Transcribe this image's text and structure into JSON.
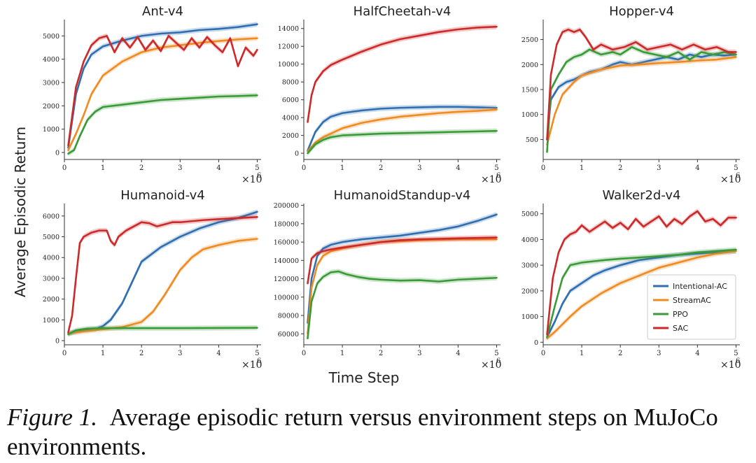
{
  "figure": {
    "ylabel": "Average Episodic Return",
    "xlabel": "Time Step",
    "legend_position": "lower-right of Walker2d-v4 panel",
    "series_styles": [
      {
        "name": "Intentional-AC",
        "color": "#2f6fb0"
      },
      {
        "name": "StreamAC",
        "color": "#f08b22"
      },
      {
        "name": "PPO",
        "color": "#3a9a37"
      },
      {
        "name": "SAC",
        "color": "#cc2a2a"
      }
    ]
  },
  "caption": {
    "label": "Figure 1.",
    "text": "Average episodic return versus environment steps on MuJoCo environments."
  },
  "chart_data": [
    {
      "type": "line",
      "title": "Ant-v4",
      "x_multiplier_label": "×10",
      "x_multiplier_exp": "6",
      "xlim": [
        0,
        5.1
      ],
      "ylim": [
        -300,
        5700
      ],
      "xticks": [
        0,
        1,
        2,
        3,
        4,
        5
      ],
      "yticks": [
        0,
        1000,
        2000,
        3000,
        4000,
        5000
      ],
      "grid": false,
      "series": [
        {
          "name": "Intentional-AC",
          "x": [
            0.1,
            0.3,
            0.5,
            0.7,
            1.0,
            1.5,
            2.0,
            2.5,
            3.0,
            3.5,
            4.0,
            4.5,
            5.0
          ],
          "y": [
            200,
            2500,
            3600,
            4200,
            4550,
            4800,
            5000,
            5100,
            5150,
            5250,
            5300,
            5380,
            5500
          ]
        },
        {
          "name": "StreamAC",
          "x": [
            0.1,
            0.3,
            0.5,
            0.7,
            1.0,
            1.5,
            2.0,
            2.5,
            3.0,
            3.5,
            4.0,
            4.5,
            5.0
          ],
          "y": [
            100,
            800,
            1600,
            2500,
            3300,
            3900,
            4300,
            4500,
            4600,
            4700,
            4780,
            4850,
            4900
          ]
        },
        {
          "name": "PPO",
          "x": [
            0.1,
            0.25,
            0.4,
            0.6,
            0.8,
            1.0,
            1.5,
            2.0,
            2.5,
            3.0,
            3.5,
            4.0,
            4.5,
            5.0
          ],
          "y": [
            -50,
            100,
            700,
            1400,
            1750,
            1950,
            2050,
            2150,
            2250,
            2300,
            2350,
            2400,
            2420,
            2450
          ]
        },
        {
          "name": "SAC",
          "x": [
            0.1,
            0.3,
            0.5,
            0.7,
            0.9,
            1.1,
            1.3,
            1.5,
            1.7,
            1.9,
            2.1,
            2.3,
            2.5,
            2.7,
            2.9,
            3.1,
            3.3,
            3.5,
            3.7,
            3.9,
            4.1,
            4.3,
            4.5,
            4.7,
            4.9,
            5.0
          ],
          "y": [
            300,
            2800,
            3900,
            4600,
            4900,
            5000,
            4300,
            4900,
            4500,
            4950,
            4400,
            4800,
            4350,
            5000,
            4700,
            4400,
            4900,
            4500,
            4950,
            4600,
            4300,
            4900,
            3700,
            4500,
            4150,
            4400
          ]
        }
      ]
    },
    {
      "type": "line",
      "title": "HalfCheetah-v4",
      "xlim": [
        0,
        5.1
      ],
      "ylim": [
        -700,
        15000
      ],
      "xticks": [
        0,
        1,
        2,
        3,
        4,
        5
      ],
      "yticks": [
        0,
        2000,
        4000,
        6000,
        8000,
        10000,
        12000,
        14000
      ],
      "grid": false,
      "series": [
        {
          "name": "Intentional-AC",
          "x": [
            0.1,
            0.3,
            0.5,
            0.7,
            1.0,
            1.5,
            2.0,
            2.5,
            3.0,
            3.5,
            4.0,
            4.5,
            5.0
          ],
          "y": [
            300,
            2400,
            3500,
            4100,
            4500,
            4800,
            5000,
            5100,
            5150,
            5200,
            5200,
            5150,
            5100
          ]
        },
        {
          "name": "StreamAC",
          "x": [
            0.1,
            0.3,
            0.5,
            0.7,
            1.0,
            1.5,
            2.0,
            2.5,
            3.0,
            3.5,
            4.0,
            4.5,
            5.0
          ],
          "y": [
            200,
            1200,
            1800,
            2200,
            2800,
            3400,
            3800,
            4100,
            4300,
            4500,
            4650,
            4750,
            4900
          ]
        },
        {
          "name": "PPO",
          "x": [
            0.1,
            0.3,
            0.5,
            0.7,
            1.0,
            1.5,
            2.0,
            2.5,
            3.0,
            3.5,
            4.0,
            4.5,
            5.0
          ],
          "y": [
            0,
            1000,
            1500,
            1800,
            2000,
            2100,
            2200,
            2250,
            2300,
            2350,
            2400,
            2450,
            2500
          ]
        },
        {
          "name": "SAC",
          "x": [
            0.1,
            0.2,
            0.3,
            0.5,
            0.7,
            1.0,
            1.5,
            2.0,
            2.5,
            3.0,
            3.5,
            4.0,
            4.5,
            5.0
          ],
          "y": [
            3500,
            6500,
            8000,
            9200,
            9900,
            10500,
            11400,
            12200,
            12800,
            13200,
            13600,
            13900,
            14100,
            14200
          ]
        }
      ]
    },
    {
      "type": "line",
      "title": "Hopper-v4",
      "xlim": [
        0,
        5.1
      ],
      "ylim": [
        100,
        2900
      ],
      "xticks": [
        0,
        1,
        2,
        3,
        4,
        5
      ],
      "yticks": [
        500,
        1000,
        1500,
        2000,
        2500
      ],
      "grid": false,
      "series": [
        {
          "name": "Intentional-AC",
          "x": [
            0.1,
            0.2,
            0.4,
            0.6,
            0.8,
            1.0,
            1.2,
            1.5,
            1.8,
            2.0,
            2.3,
            2.6,
            2.9,
            3.2,
            3.5,
            3.8,
            4.1,
            4.4,
            4.7,
            5.0
          ],
          "y": [
            500,
            1300,
            1550,
            1650,
            1700,
            1780,
            1850,
            1900,
            2000,
            2050,
            2000,
            2050,
            2100,
            2150,
            2100,
            2200,
            2150,
            2200,
            2180,
            2200
          ]
        },
        {
          "name": "StreamAC",
          "x": [
            0.1,
            0.3,
            0.5,
            0.8,
            1.0,
            1.5,
            2.0,
            2.5,
            3.0,
            3.5,
            4.0,
            4.5,
            5.0
          ],
          "y": [
            400,
            1000,
            1400,
            1650,
            1780,
            1900,
            1980,
            2000,
            2030,
            2050,
            2080,
            2100,
            2150
          ]
        },
        {
          "name": "PPO",
          "x": [
            0.1,
            0.2,
            0.4,
            0.6,
            0.8,
            1.0,
            1.2,
            1.5,
            1.8,
            2.0,
            2.3,
            2.6,
            2.9,
            3.2,
            3.5,
            3.8,
            4.1,
            4.4,
            4.7,
            5.0
          ],
          "y": [
            250,
            1500,
            1800,
            2050,
            2150,
            2200,
            2300,
            2200,
            2250,
            2200,
            2350,
            2250,
            2200,
            2150,
            2250,
            2100,
            2250,
            2200,
            2250,
            2200
          ]
        },
        {
          "name": "SAC",
          "x": [
            0.1,
            0.2,
            0.35,
            0.5,
            0.65,
            0.8,
            0.95,
            1.1,
            1.3,
            1.5,
            1.8,
            2.1,
            2.4,
            2.7,
            3.0,
            3.3,
            3.6,
            3.9,
            4.2,
            4.5,
            4.8,
            5.0
          ],
          "y": [
            500,
            1800,
            2400,
            2650,
            2700,
            2650,
            2700,
            2550,
            2300,
            2400,
            2300,
            2350,
            2450,
            2300,
            2350,
            2400,
            2300,
            2400,
            2300,
            2350,
            2250,
            2250
          ]
        }
      ]
    },
    {
      "type": "line",
      "title": "Humanoid-v4",
      "xlim": [
        0,
        5.1
      ],
      "ylim": [
        -200,
        6600
      ],
      "xticks": [
        0,
        1,
        2,
        3,
        4,
        5
      ],
      "yticks": [
        0,
        1000,
        2000,
        3000,
        4000,
        5000,
        6000
      ],
      "grid": false,
      "series": [
        {
          "name": "Intentional-AC",
          "x": [
            0.1,
            0.5,
            0.8,
            1.0,
            1.2,
            1.5,
            1.8,
            2.0,
            2.5,
            3.0,
            3.5,
            4.0,
            4.5,
            5.0
          ],
          "y": [
            350,
            500,
            550,
            700,
            1000,
            1800,
            3000,
            3800,
            4500,
            5000,
            5400,
            5700,
            5900,
            6200
          ]
        },
        {
          "name": "StreamAC",
          "x": [
            0.1,
            0.5,
            1.0,
            1.5,
            2.0,
            2.3,
            2.6,
            3.0,
            3.3,
            3.6,
            4.0,
            4.5,
            5.0
          ],
          "y": [
            350,
            450,
            550,
            650,
            900,
            1400,
            2200,
            3400,
            4000,
            4400,
            4600,
            4800,
            4900
          ]
        },
        {
          "name": "PPO",
          "x": [
            0.1,
            0.3,
            0.6,
            1.0,
            1.5,
            2.0,
            3.0,
            4.0,
            5.0
          ],
          "y": [
            300,
            500,
            580,
            600,
            600,
            600,
            600,
            610,
            620
          ]
        },
        {
          "name": "SAC",
          "x": [
            0.1,
            0.2,
            0.3,
            0.4,
            0.5,
            0.7,
            0.9,
            1.1,
            1.2,
            1.3,
            1.4,
            1.6,
            1.8,
            2.0,
            2.2,
            2.4,
            2.6,
            2.8,
            3.0,
            3.3,
            3.6,
            4.0,
            4.5,
            5.0
          ],
          "y": [
            400,
            1200,
            3000,
            4700,
            5000,
            5200,
            5300,
            5300,
            4800,
            4600,
            5000,
            5300,
            5500,
            5700,
            5650,
            5500,
            5600,
            5700,
            5700,
            5750,
            5800,
            5850,
            5900,
            5950
          ]
        }
      ]
    },
    {
      "type": "line",
      "title": "HumanoidStandup-v4",
      "xlim": [
        0,
        5.1
      ],
      "ylim": [
        48000,
        202000
      ],
      "xticks": [
        0,
        1,
        2,
        3,
        4,
        5
      ],
      "yticks": [
        60000,
        80000,
        100000,
        120000,
        140000,
        160000,
        180000,
        200000
      ],
      "grid": false,
      "series": [
        {
          "name": "Intentional-AC",
          "x": [
            0.1,
            0.2,
            0.35,
            0.5,
            0.7,
            1.0,
            1.5,
            2.0,
            2.5,
            3.0,
            3.5,
            4.0,
            4.5,
            5.0
          ],
          "y": [
            72000,
            120000,
            145000,
            153000,
            157000,
            160000,
            163000,
            165000,
            167000,
            170000,
            173000,
            177000,
            183000,
            190000
          ]
        },
        {
          "name": "StreamAC",
          "x": [
            0.1,
            0.2,
            0.35,
            0.5,
            0.7,
            1.0,
            1.5,
            2.0,
            2.5,
            3.0,
            3.5,
            4.0,
            4.5,
            5.0
          ],
          "y": [
            60000,
            110000,
            135000,
            145000,
            150000,
            153000,
            157000,
            160000,
            161000,
            162000,
            162500,
            163000,
            163000,
            163000
          ]
        },
        {
          "name": "PPO",
          "x": [
            0.1,
            0.2,
            0.35,
            0.5,
            0.7,
            0.9,
            1.1,
            1.4,
            1.7,
            2.0,
            2.5,
            3.0,
            3.5,
            4.0,
            4.5,
            5.0
          ],
          "y": [
            55000,
            95000,
            115000,
            122000,
            127000,
            128000,
            125000,
            122000,
            120000,
            119000,
            118000,
            118500,
            117000,
            119000,
            120000,
            121000
          ]
        },
        {
          "name": "SAC",
          "x": [
            0.1,
            0.2,
            0.35,
            0.5,
            0.7,
            1.0,
            1.5,
            2.0,
            2.5,
            3.0,
            3.5,
            4.0,
            4.5,
            5.0
          ],
          "y": [
            115000,
            142000,
            148000,
            150000,
            152000,
            154000,
            157000,
            160000,
            162000,
            163000,
            163500,
            164000,
            164500,
            165000
          ]
        }
      ]
    },
    {
      "type": "line",
      "title": "Walker2d-v4",
      "xlim": [
        0,
        5.1
      ],
      "ylim": [
        -100,
        5400
      ],
      "xticks": [
        0,
        1,
        2,
        3,
        4,
        5
      ],
      "yticks": [
        0,
        1000,
        2000,
        3000,
        4000,
        5000
      ],
      "grid": false,
      "legend": [
        "Intentional-AC",
        "StreamAC",
        "PPO",
        "SAC"
      ],
      "series": [
        {
          "name": "Intentional-AC",
          "x": [
            0.1,
            0.3,
            0.5,
            0.7,
            1.0,
            1.3,
            1.6,
            2.0,
            2.5,
            3.0,
            3.5,
            4.0,
            4.5,
            5.0
          ],
          "y": [
            200,
            800,
            1500,
            2000,
            2300,
            2600,
            2800,
            3000,
            3200,
            3300,
            3400,
            3450,
            3500,
            3550
          ]
        },
        {
          "name": "StreamAC",
          "x": [
            0.1,
            0.3,
            0.5,
            0.7,
            1.0,
            1.5,
            2.0,
            2.5,
            3.0,
            3.5,
            4.0,
            4.5,
            5.0
          ],
          "y": [
            150,
            400,
            700,
            1000,
            1400,
            1900,
            2300,
            2600,
            2900,
            3100,
            3300,
            3450,
            3550
          ]
        },
        {
          "name": "PPO",
          "x": [
            0.1,
            0.3,
            0.5,
            0.7,
            1.0,
            1.3,
            1.6,
            2.0,
            2.5,
            3.0,
            3.5,
            4.0,
            4.5,
            5.0
          ],
          "y": [
            200,
            1400,
            2500,
            3000,
            3100,
            3150,
            3200,
            3250,
            3300,
            3350,
            3400,
            3500,
            3550,
            3600
          ]
        },
        {
          "name": "SAC",
          "x": [
            0.1,
            0.25,
            0.4,
            0.55,
            0.7,
            0.85,
            1.0,
            1.2,
            1.4,
            1.6,
            1.8,
            2.0,
            2.2,
            2.4,
            2.6,
            2.8,
            3.0,
            3.2,
            3.4,
            3.6,
            3.8,
            4.0,
            4.2,
            4.4,
            4.6,
            4.8,
            5.0
          ],
          "y": [
            300,
            2500,
            3500,
            4000,
            4200,
            4300,
            4550,
            4300,
            4500,
            4700,
            4450,
            4650,
            4400,
            4800,
            4500,
            4700,
            4900,
            4500,
            4800,
            4600,
            4900,
            5100,
            4700,
            4800,
            4550,
            4850,
            4850
          ]
        }
      ]
    }
  ]
}
